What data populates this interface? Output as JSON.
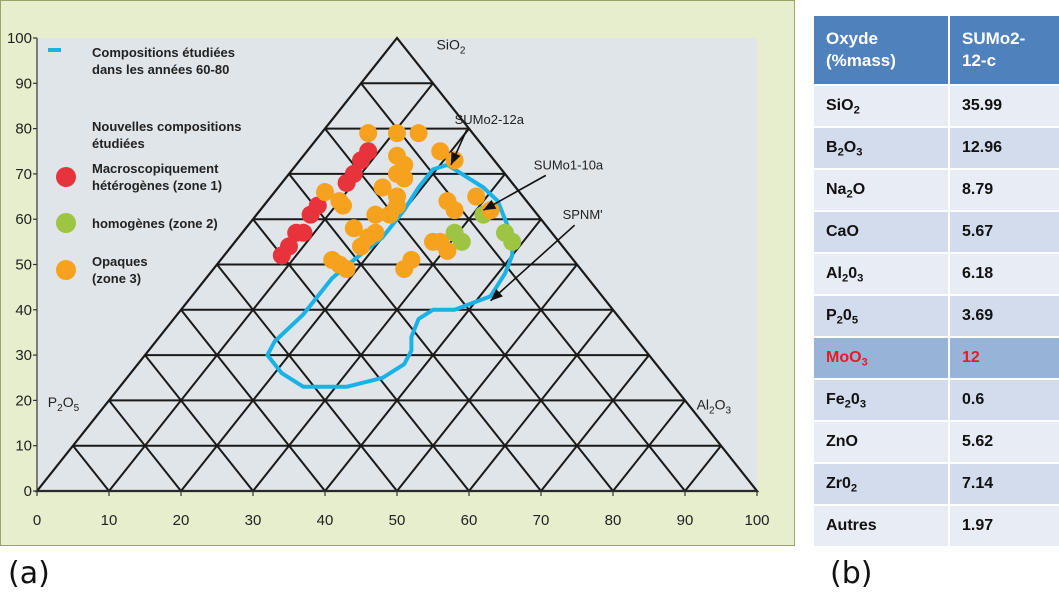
{
  "chart_data": {
    "type": "scatter",
    "subtype": "ternary",
    "vertices": {
      "top": [
        "SiO",
        "2"
      ],
      "left": [
        "P",
        "2",
        "O",
        "5"
      ],
      "right": [
        "Al",
        "2",
        "O",
        "3"
      ]
    },
    "x_ticks": [
      "0",
      "10",
      "20",
      "30",
      "40",
      "50",
      "60",
      "70",
      "80",
      "90",
      "100"
    ],
    "y_ticks": [
      "0",
      "10",
      "20",
      "30",
      "40",
      "50",
      "60",
      "70",
      "80",
      "90",
      "100"
    ],
    "xlim": [
      0,
      100
    ],
    "ylim": [
      0,
      100
    ],
    "grid_step": 10,
    "legend": {
      "placement": "top-left",
      "line_entry": [
        "Compositions étudiées",
        "dans les années 60-80"
      ],
      "heading": [
        "Nouvelles compositions",
        "étudiées"
      ],
      "entries": [
        {
          "key": "red",
          "color": "#e8333c",
          "lines": [
            "Macroscopiquement",
            "hétérogènes (zone 1)"
          ]
        },
        {
          "key": "green",
          "color": "#9dc443",
          "lines": [
            "homogènes (zone 2)"
          ]
        },
        {
          "key": "orange",
          "color": "#f7a21e",
          "lines": [
            "Opaques",
            "(zone 3)"
          ]
        }
      ]
    },
    "annotations": [
      {
        "text": "SUMo2-12a",
        "x": 58,
        "y": 81,
        "arrow_to": [
          57.5,
          72
        ]
      },
      {
        "text": "SUMo1-10a",
        "x": 69,
        "y": 71,
        "arrow_to": [
          62,
          62
        ]
      },
      {
        "text": "SPNM'",
        "x": 73,
        "y": 60,
        "arrow_to": [
          63,
          42
        ]
      }
    ],
    "series": [
      {
        "name": "Macroscopiquement hétérogènes (zone 1)",
        "color": "#e8333c",
        "points": [
          [
            34,
            52
          ],
          [
            35,
            54
          ],
          [
            36,
            57
          ],
          [
            37,
            57
          ],
          [
            38,
            61
          ],
          [
            39,
            63
          ],
          [
            43,
            68
          ],
          [
            44,
            70
          ],
          [
            45,
            73
          ],
          [
            46,
            75
          ]
        ]
      },
      {
        "name": "homogènes (zone 2)",
        "color": "#9dc443",
        "points": [
          [
            58,
            57
          ],
          [
            59,
            55
          ],
          [
            62,
            61
          ],
          [
            65,
            57
          ],
          [
            66,
            55
          ]
        ]
      },
      {
        "name": "Opaques (zone 3)",
        "color": "#f7a21e",
        "points": [
          [
            40,
            66
          ],
          [
            42,
            64
          ],
          [
            42.5,
            63
          ],
          [
            46,
            79
          ],
          [
            50,
            79
          ],
          [
            53,
            79
          ],
          [
            50,
            74
          ],
          [
            51,
            72
          ],
          [
            50,
            70
          ],
          [
            51,
            69
          ],
          [
            48,
            67
          ],
          [
            50,
            65
          ],
          [
            50,
            63
          ],
          [
            47,
            61
          ],
          [
            49,
            61
          ],
          [
            44,
            58
          ],
          [
            46,
            56
          ],
          [
            47,
            57
          ],
          [
            45,
            54
          ],
          [
            41,
            51
          ],
          [
            42,
            50
          ],
          [
            43,
            49
          ],
          [
            51,
            49
          ],
          [
            52,
            51
          ],
          [
            55,
            55
          ],
          [
            57,
            53
          ],
          [
            56,
            55
          ],
          [
            58,
            62
          ],
          [
            57,
            64
          ],
          [
            58,
            73
          ],
          [
            56,
            75
          ],
          [
            61,
            65
          ],
          [
            63,
            62
          ]
        ]
      },
      {
        "name": "Compositions étudiées dans les années 60-80",
        "color": "#1ab2e6",
        "outline": [
          [
            55,
            71
          ],
          [
            57,
            72
          ],
          [
            59,
            70
          ],
          [
            62,
            67
          ],
          [
            64,
            64
          ],
          [
            65,
            60
          ],
          [
            66,
            56
          ],
          [
            66,
            52
          ],
          [
            65,
            48
          ],
          [
            63,
            43
          ],
          [
            58,
            40
          ],
          [
            55,
            40
          ],
          [
            53,
            38
          ],
          [
            52,
            34
          ],
          [
            52,
            31
          ],
          [
            51,
            28
          ],
          [
            48,
            25
          ],
          [
            43,
            23
          ],
          [
            37,
            23
          ],
          [
            34,
            26
          ],
          [
            32,
            30
          ],
          [
            33,
            33
          ],
          [
            35,
            36
          ],
          [
            37,
            39
          ],
          [
            41,
            47
          ],
          [
            44,
            51
          ],
          [
            48,
            56
          ],
          [
            51,
            62
          ],
          [
            53,
            67
          ],
          [
            55,
            71
          ]
        ]
      }
    ]
  },
  "table": {
    "headers": [
      [
        "Oxyde",
        "(%mass)"
      ],
      [
        "SUMo2-",
        "12-c"
      ]
    ],
    "rows": [
      {
        "oxide": "SiO",
        "sub": "2",
        "value": "35.99"
      },
      {
        "oxide": "B",
        "sub": "2",
        "tail": "O",
        "sub2": "3",
        "value": "12.96"
      },
      {
        "oxide": "Na",
        "sub": "2",
        "tail": "O",
        "value": "8.79"
      },
      {
        "oxide": "CaO",
        "value": "5.67"
      },
      {
        "oxide": "Al",
        "sub": "2",
        "tail": "0",
        "sub2": "3",
        "value": "6.18"
      },
      {
        "oxide": "P",
        "sub": "2",
        "tail": "0",
        "sub2": "5",
        "value": "3.69"
      },
      {
        "oxide": "MoO",
        "sub": "3",
        "value": "12",
        "highlight": true
      },
      {
        "oxide": "Fe",
        "sub": "2",
        "tail": "0",
        "sub2": "3",
        "value": "0.6"
      },
      {
        "oxide": "ZnO",
        "value": "5.62"
      },
      {
        "oxide": "Zr0",
        "sub": "2",
        "value": "7.14"
      },
      {
        "oxide": "Autres",
        "value": "1.97"
      }
    ]
  },
  "labels": {
    "a": "(a)",
    "b": "(b)"
  }
}
